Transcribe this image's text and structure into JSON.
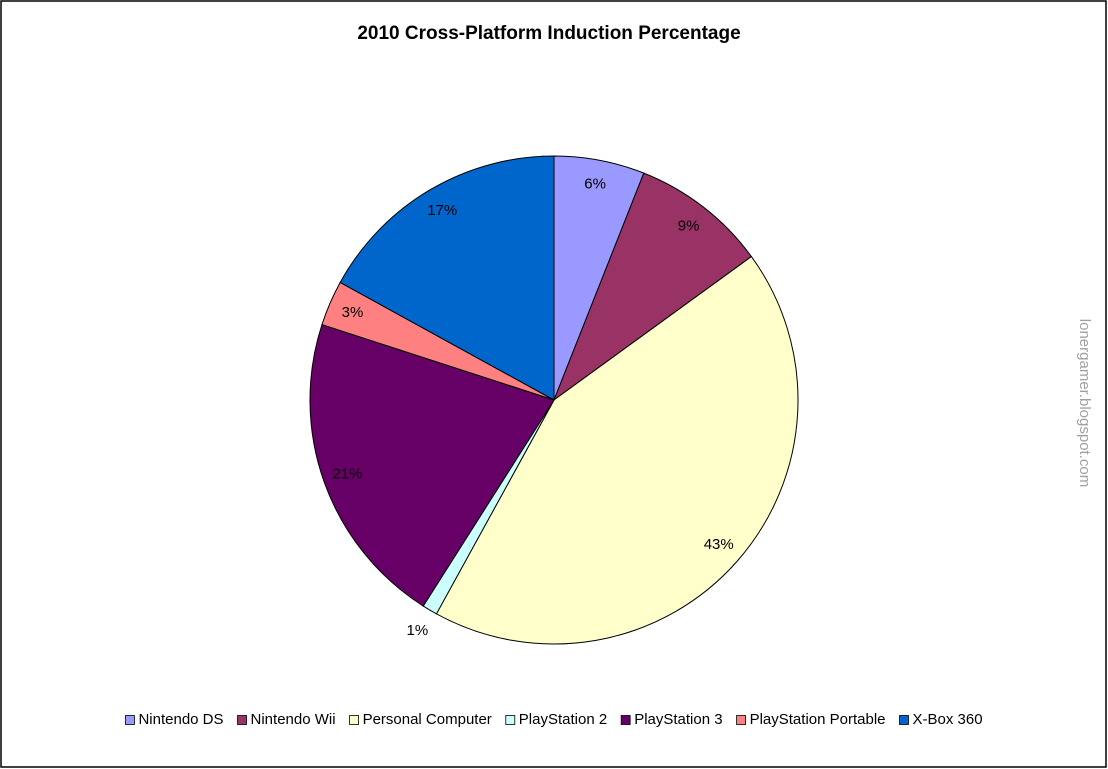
{
  "chart_data": {
    "type": "pie",
    "title": "2010 Cross-Platform Induction Percentage",
    "categories": [
      "Nintendo DS",
      "Nintendo Wii",
      "Personal Computer",
      "PlayStation 2",
      "PlayStation 3",
      "PlayStation Portable",
      "X-Box 360"
    ],
    "values": [
      6,
      9,
      43,
      1,
      21,
      3,
      17
    ],
    "value_labels": [
      "6%",
      "9%",
      "43%",
      "1%",
      "21%",
      "3%",
      "17%"
    ],
    "colors": [
      "#9999ff",
      "#993366",
      "#ffffcc",
      "#ccffff",
      "#660066",
      "#ff8080",
      "#0066cc"
    ],
    "watermark": "lonergamer.blogspot.com"
  }
}
